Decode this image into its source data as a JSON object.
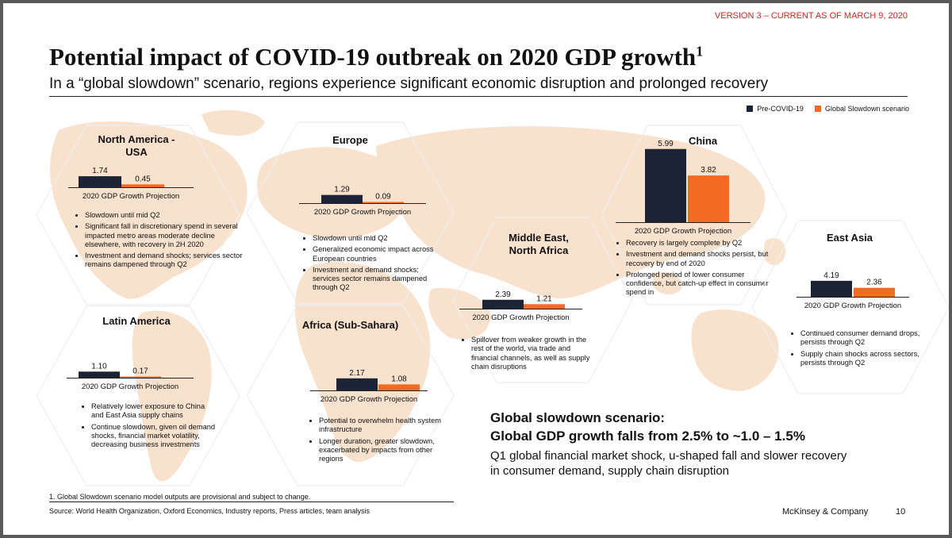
{
  "header": {
    "version": "VERSION 3 – CURRENT AS OF MARCH 9, 2020",
    "title": "Potential impact of COVID-19 outbreak on 2020 GDP growth",
    "title_footnote_mark": "1",
    "subtitle": "In a “global slowdown” scenario, regions experience significant economic disruption and prolonged recovery"
  },
  "legend": {
    "items": [
      {
        "label": "Pre-COVID-19",
        "color": "#1b2335"
      },
      {
        "label": "Global Slowdown scenario",
        "color": "#f26b21"
      }
    ]
  },
  "chart_data": [
    {
      "type": "bar",
      "title": "North America - USA",
      "xlabel": "2020 GDP Growth Projection",
      "categories": [
        "Pre-COVID-19",
        "Global Slowdown scenario"
      ],
      "values": [
        1.74,
        0.45
      ],
      "bullets": [
        "Slowdown until mid Q2",
        "Significant fall in discretionary spend in several impacted metro areas moderate decline elsewhere, with recovery in 2H 2020",
        "Investment and demand shocks; services sector remains dampened through Q2"
      ]
    },
    {
      "type": "bar",
      "title": "Europe",
      "xlabel": "2020 GDP Growth Projection",
      "categories": [
        "Pre-COVID-19",
        "Global Slowdown scenario"
      ],
      "values": [
        1.29,
        0.09
      ],
      "bullets": [
        "Slowdown until mid Q2",
        "Generalized economic impact across European countries",
        "Investment and demand shocks; services sector remains dampened through Q2"
      ]
    },
    {
      "type": "bar",
      "title": "Middle East, North Africa",
      "xlabel": "2020 GDP Growth Projection",
      "categories": [
        "Pre-COVID-19",
        "Global Slowdown scenario"
      ],
      "values": [
        2.39,
        1.21
      ],
      "bullets": [
        "Spillover from weaker growth in the rest of the world, via trade and financial channels, as well as supply chain disruptions"
      ]
    },
    {
      "type": "bar",
      "title": "China",
      "xlabel": "2020 GDP Growth Projection",
      "categories": [
        "Pre-COVID-19",
        "Global Slowdown scenario"
      ],
      "values": [
        5.99,
        3.82
      ],
      "bullets": [
        "Recovery is largely complete by Q2",
        "Investment and demand shocks persist, but recovery by end of 2020",
        "Prolonged period of lower consumer confidence, but catch-up effect in consumer spend in"
      ]
    },
    {
      "type": "bar",
      "title": "East Asia",
      "xlabel": "2020 GDP Growth Projection",
      "categories": [
        "Pre-COVID-19",
        "Global Slowdown scenario"
      ],
      "values": [
        4.19,
        2.36
      ],
      "bullets": [
        "Continued consumer demand drops, persists through Q2",
        "Supply chain shocks across sectors, persists through Q2"
      ]
    },
    {
      "type": "bar",
      "title": "Latin America",
      "xlabel": "2020 GDP Growth Projection",
      "categories": [
        "Pre-COVID-19",
        "Global Slowdown scenario"
      ],
      "values": [
        1.1,
        0.17
      ],
      "bullets": [
        "Relatively lower exposure to China and East Asia supply chains",
        "Continue slowdown, given oil demand shocks, financial market volatility, decreasing business investments"
      ]
    },
    {
      "type": "bar",
      "title": "Africa (Sub-Sahara)",
      "xlabel": "2020 GDP Growth Projection",
      "categories": [
        "Pre-COVID-19",
        "Global Slowdown scenario"
      ],
      "values": [
        2.17,
        1.08
      ],
      "bullets": [
        "Potential to overwhelm health system infrastructure",
        "Longer duration, greater slowdown, exacerbated by impacts from other regions"
      ]
    }
  ],
  "headline": {
    "line1": "Global slowdown scenario:",
    "line2": "Global GDP growth falls from 2.5% to ~1.0 – 1.5%",
    "sub1": "Q1 global financial market shock, u-shaped fall and slower recovery",
    "sub2": "in consumer demand, supply chain disruption"
  },
  "footer": {
    "footnote": "1.   Global Slowdown scenario model outputs are provisional and subject to change.",
    "source": "Source: World Health Organization, Oxford Economics, Industry reports, Press articles, team analysis",
    "brand": "McKinsey & Company",
    "page": "10"
  },
  "colors": {
    "pre": "#1b2335",
    "slowdown": "#f26b21",
    "map": "#f7d9c1",
    "accent_red": "#e0201b"
  }
}
